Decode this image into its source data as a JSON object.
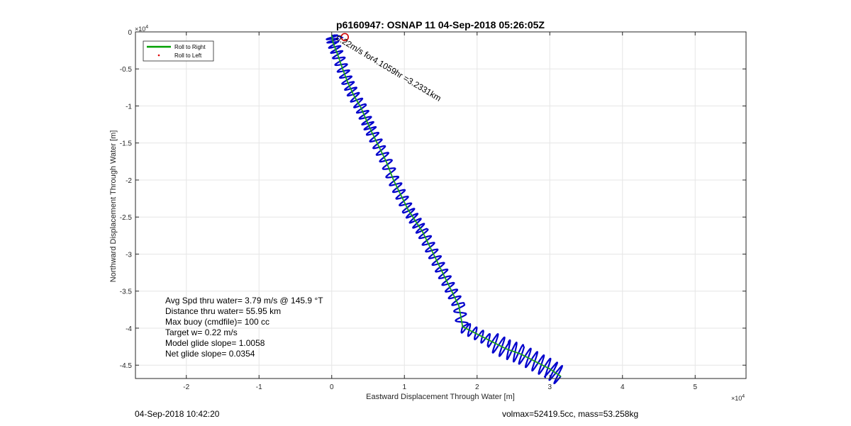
{
  "chart_data": {
    "type": "line",
    "title": "p6160947: OSNAP 11 04-Sep-2018 05:26:05Z",
    "xlabel": "Eastward Displacement Through Water [m]",
    "ylabel": "Northward Displacement Through Water [m]",
    "x_exponent_label": "×10",
    "x_exponent_power": "4",
    "y_exponent_label": "×10",
    "y_exponent_power": "4",
    "xlim": [
      -27000,
      57000
    ],
    "ylim": [
      -46800,
      0
    ],
    "grid": true,
    "x_ticks": [
      -20000,
      -10000,
      0,
      10000,
      20000,
      30000,
      40000,
      50000
    ],
    "x_tick_labels": [
      "-2",
      "-1",
      "0",
      "1",
      "2",
      "3",
      "4",
      "5"
    ],
    "y_ticks": [
      0,
      -5000,
      -10000,
      -15000,
      -20000,
      -25000,
      -30000,
      -35000,
      -40000,
      -45000
    ],
    "y_tick_labels": [
      "0",
      "-0.5",
      "-1",
      "-1.5",
      "-2",
      "-2.5",
      "-3",
      "-3.5",
      "-4",
      "-4.5"
    ],
    "legend": {
      "placement": "top-left",
      "entries": [
        {
          "label": "Roll to Right",
          "color": "#00a000",
          "style": "line"
        },
        {
          "label": "Roll to Left",
          "color": "#e00000",
          "style": "dot"
        }
      ]
    },
    "series": [
      {
        "name": "Roll to Right",
        "color": "#1aa01a",
        "x": [
          0,
          200,
          800,
          1500,
          2200,
          3000,
          4000,
          4800,
          5500,
          6500,
          7500,
          8500,
          9500,
          10500,
          11500,
          12500,
          13500,
          14500,
          15500,
          16500,
          17500,
          18000,
          20000,
          22000,
          24000,
          26000,
          28000,
          30000,
          31500
        ],
        "y": [
          -500,
          -1500,
          -3000,
          -5000,
          -6800,
          -8500,
          -10200,
          -12000,
          -13500,
          -15500,
          -17500,
          -20000,
          -22000,
          -24000,
          -25500,
          -27000,
          -29000,
          -31000,
          -33000,
          -35000,
          -37000,
          -39800,
          -40800,
          -41800,
          -42800,
          -43500,
          -44500,
          -45500,
          -46500
        ]
      }
    ],
    "track_color": "#0000cc",
    "annotation": {
      "text": "0.22m/s for4.1059hr =3.2331km",
      "color": "#000000",
      "x": 500,
      "y": -1000,
      "rotation_deg": 31
    },
    "current_start_marker": {
      "x": 1800,
      "y": -700,
      "color": "#cc0000"
    },
    "current_arrow": {
      "x0": 300,
      "y0": -400,
      "x1": 1600,
      "y1": -800,
      "color": "#0000cc"
    },
    "stats": [
      "Avg Spd thru water=  3.79 m/s @ 145.9 °T",
      "Distance thru water= 55.95 km",
      "Max buoy (cmdfile)= 100 cc",
      "Target w= 0.22 m/s",
      "Model glide slope= 1.0058",
      "Net glide slope= 0.0354"
    ]
  },
  "footer": {
    "left": "04-Sep-2018 10:42:20",
    "right": "volmax=52419.5cc, mass=53.258kg"
  }
}
